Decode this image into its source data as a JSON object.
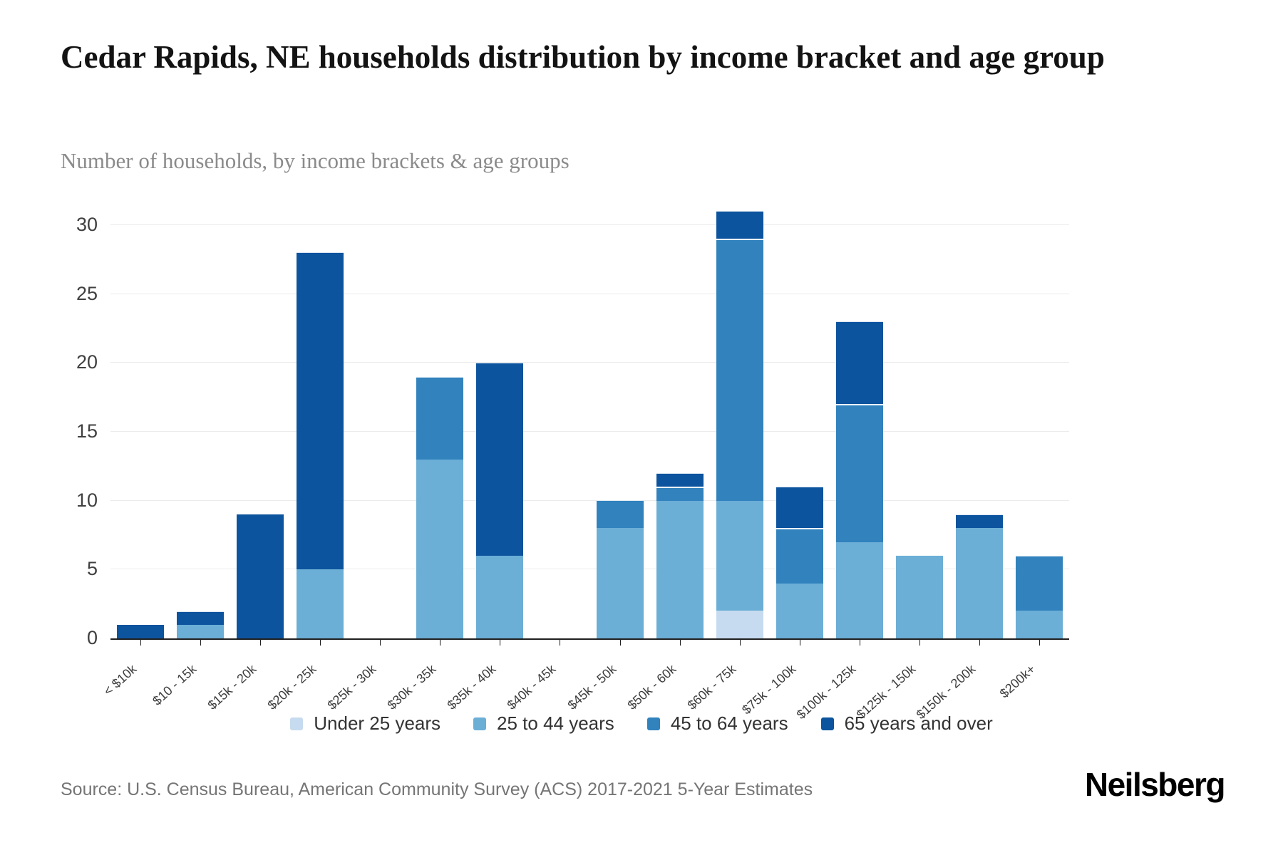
{
  "page": {
    "title": "Cedar Rapids, NE households distribution by income bracket and age group",
    "subtitle": "Number of households, by income brackets & age groups",
    "source": "Source: U.S. Census Bureau, American Community Survey (ACS) 2017-2021 5-Year Estimates",
    "brand": "Neilsberg"
  },
  "colors": {
    "under_25": "#c6dbef",
    "age_25_44": "#6baed6",
    "age_45_64": "#3182bd",
    "age_65_plus": "#0d549e",
    "gridline": "#ebebeb",
    "axis_line": "#1f1f1f",
    "title_text": "#131313",
    "subtitle_text": "#8b8b8b",
    "tick_text": "#3d3d3d",
    "source_text": "#757575"
  },
  "chart_data": {
    "type": "bar",
    "stacked": true,
    "title": "Cedar Rapids, NE households distribution by income bracket and age group",
    "subtitle": "Number of households, by income brackets & age groups",
    "xlabel": "",
    "ylabel": "Number of households",
    "grid": "horizontal",
    "legend_position": "bottom",
    "ylim": [
      0,
      33
    ],
    "yticks": [
      0,
      5,
      10,
      15,
      20,
      25,
      30
    ],
    "categories": [
      "< $10k",
      "$10 - 15k",
      "$15k - 20k",
      "$20k - 25k",
      "$25k - 30k",
      "$30k - 35k",
      "$35k - 40k",
      "$40k - 45k",
      "$45k - 50k",
      "$50k - 60k",
      "$60k - 75k",
      "$75k - 100k",
      "$100k - 125k",
      "$125k - 150k",
      "$150k - 200k",
      "$200k+"
    ],
    "series": [
      {
        "name": "Under 25 years",
        "color": "#c6dbef",
        "values": [
          0,
          0,
          0,
          0,
          0,
          0,
          0,
          0,
          0,
          0,
          2,
          0,
          0,
          0,
          0,
          0
        ]
      },
      {
        "name": "25 to 44 years",
        "color": "#6baed6",
        "values": [
          0,
          1,
          0,
          5,
          0,
          13,
          6,
          0,
          8,
          10,
          8,
          4,
          7,
          6,
          8,
          2
        ]
      },
      {
        "name": "45 to 64 years",
        "color": "#3182bd",
        "values": [
          0,
          0,
          0,
          0,
          0,
          6,
          0,
          0,
          2,
          1,
          19,
          4,
          10,
          0,
          0,
          4
        ]
      },
      {
        "name": "65 years and over",
        "color": "#0d549e",
        "values": [
          1,
          1,
          9,
          23,
          0,
          0,
          14,
          0,
          0,
          1,
          2,
          3,
          6,
          0,
          1,
          0
        ]
      }
    ],
    "totals": [
      1,
      2,
      9,
      28,
      0,
      19,
      20,
      0,
      10,
      12,
      31,
      11,
      23,
      6,
      9,
      6
    ]
  }
}
